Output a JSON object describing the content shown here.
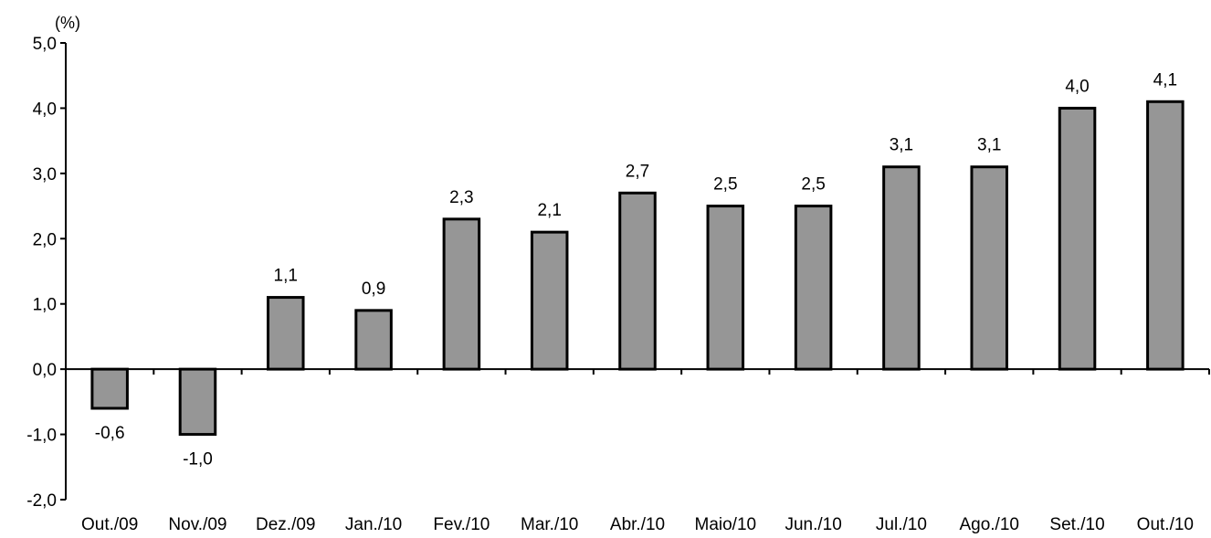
{
  "chart_data": {
    "type": "bar",
    "unit_label": "(%)",
    "categories": [
      "Out./09",
      "Nov./09",
      "Dez./09",
      "Jan./10",
      "Fev./10",
      "Mar./10",
      "Abr./10",
      "Maio/10",
      "Jun./10",
      "Jul./10",
      "Ago./10",
      "Set./10",
      "Out./10"
    ],
    "values": [
      -0.6,
      -1.0,
      1.1,
      0.9,
      2.3,
      2.1,
      2.7,
      2.5,
      2.5,
      3.1,
      3.1,
      4.0,
      4.1
    ],
    "data_labels": [
      "-0,6",
      "-1,0",
      "1,1",
      "0,9",
      "2,3",
      "2,1",
      "2,7",
      "2,5",
      "2,5",
      "3,1",
      "3,1",
      "4,0",
      "4,1"
    ],
    "y_ticks": [
      -2.0,
      -1.0,
      0.0,
      1.0,
      2.0,
      3.0,
      4.0,
      5.0
    ],
    "y_tick_labels": [
      "-2,0",
      "-1,0",
      "0,0",
      "1,0",
      "2,0",
      "3,0",
      "4,0",
      "5,0"
    ],
    "ylim": [
      -2.0,
      5.0
    ],
    "grid": false,
    "legend": "none",
    "colors": {
      "bar_fill": "#969696",
      "bar_stroke": "#000000",
      "axis": "#000000"
    }
  }
}
